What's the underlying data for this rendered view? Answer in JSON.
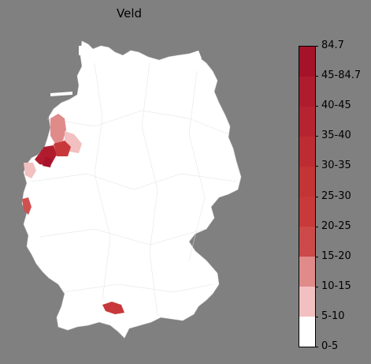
{
  "map": {
    "title": "Veld",
    "base_color": "#ffffff",
    "highlighted_regions": [
      {
        "name": "region-emsland-north",
        "color": "#e08a8a"
      },
      {
        "name": "region-osnabrueck-east",
        "color": "#f2c0c0"
      },
      {
        "name": "region-grafschaft-bentheim",
        "color": "#b01c2e"
      },
      {
        "name": "region-steinfurt",
        "color": "#c8383a"
      },
      {
        "name": "region-borken",
        "color": "#a8122a"
      },
      {
        "name": "region-kleve",
        "color": "#f2c0c0"
      },
      {
        "name": "region-heinsberg",
        "color": "#d05050"
      },
      {
        "name": "region-ostallgaeu",
        "color": "#c8383a"
      }
    ]
  },
  "legend": {
    "bins": [
      {
        "label": "0-5",
        "color": "#ffffff"
      },
      {
        "label": "5-10",
        "color": "#f2c0c0"
      },
      {
        "label": "10-15",
        "color": "#e08a8a"
      },
      {
        "label": "15-20",
        "color": "#cc4a4a"
      },
      {
        "label": "20-25",
        "color": "#c83a3a"
      },
      {
        "label": "25-30",
        "color": "#c33435"
      },
      {
        "label": "30-35",
        "color": "#bd2c33"
      },
      {
        "label": "35-40",
        "color": "#b62431"
      },
      {
        "label": "40-45",
        "color": "#ae1c2e"
      },
      {
        "label": "45-84.7",
        "color": "#a5132b"
      },
      {
        "label": "84.7",
        "color": "#9c0a26"
      }
    ],
    "tick_labels": [
      "0-5",
      "5-10",
      "10-15",
      "15-20",
      "20-25",
      "25-30",
      "30-35",
      "35-40",
      "40-45",
      "45-84.7",
      "84.7"
    ]
  }
}
